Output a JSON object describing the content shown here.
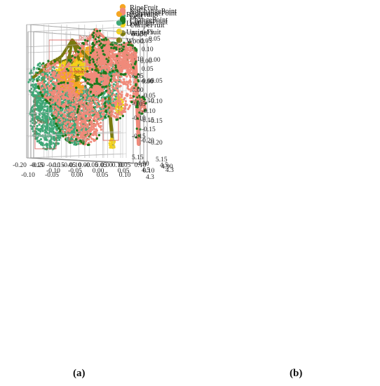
{
  "figure": {
    "captions": [
      "(a)",
      "(b)"
    ]
  },
  "colors": {
    "RipeFruit": "#f5a623",
    "Leaf": "#3fa877",
    "UnripeFruit": "#f2d21a",
    "Wood": "#7a7a10",
    "NoChangePoint": "#f08a7a",
    "ChangePoint": "#1e7a1e",
    "box": "#d9534f"
  },
  "chart_data": [
    {
      "panel": "top-left",
      "type": "scatter",
      "series_names": [
        "RipeFruit",
        "Leaf",
        "UnripeFruit",
        "Wood"
      ],
      "legend_position": "top-center",
      "x_ticks": [
        "-0.10",
        "-0.05",
        "0.00",
        "0.05",
        "0.10"
      ],
      "y_ticks": [
        "0.05",
        "0.00",
        "-0.05",
        "-0.10",
        "-0.15",
        "-0.20"
      ],
      "z_ticks": [
        "4.5",
        "4.3"
      ],
      "xlim": [
        -0.13,
        0.12
      ],
      "ylim": [
        -0.22,
        0.06
      ],
      "grid": true,
      "boxes": [
        "box5",
        "box3",
        "box1"
      ]
    },
    {
      "panel": "top-right",
      "type": "scatter",
      "series_names": [
        "NoChangePoint",
        "ChangePoint"
      ],
      "legend_position": "top-center",
      "x_ticks": [
        "-0.10",
        "-0.05",
        "0.00",
        "0.05",
        "0.10"
      ],
      "y_ticks": [
        "0.05",
        "0.00",
        "-0.05",
        "-0.10",
        "-0.15",
        "-0.20"
      ],
      "z_ticks": [
        "4.5",
        "4.3"
      ],
      "xlim": [
        -0.13,
        0.12
      ],
      "ylim": [
        -0.22,
        0.06
      ],
      "grid": true
    },
    {
      "panel": "bottom-left",
      "type": "scatter",
      "series_names": [
        "RipeFruit",
        "Leaf",
        "UnripeFruit",
        "Wood"
      ],
      "legend_position": "top-center",
      "x_ticks": [
        "-0.20",
        "-0.15",
        "-0.10",
        "-0.05",
        "0.00",
        "0.05",
        "0.10"
      ],
      "y_ticks": [
        "0.15",
        "0.10",
        "0.05",
        "0.00",
        "-0.05",
        "-0.10",
        "-0.15"
      ],
      "z_ticks": [
        "5.15",
        "4.90"
      ],
      "xlim": [
        -0.22,
        0.12
      ],
      "ylim": [
        -0.18,
        0.17
      ],
      "grid": true,
      "boxes": [
        "box4",
        "box6",
        "box2"
      ]
    },
    {
      "panel": "bottom-right",
      "type": "scatter",
      "series_names": [
        "NoChangePoint",
        "ChangePoint"
      ],
      "legend_position": "top-center",
      "x_ticks": [
        "-0.20",
        "-0.15",
        "-0.10",
        "-0.05",
        "0.00",
        "0.05",
        "0.10"
      ],
      "y_ticks": [
        "0.15",
        "0.10",
        "0.05",
        "0.00",
        "-0.05",
        "-0.10",
        "-0.15"
      ],
      "z_ticks": [
        "5.15",
        "4.90"
      ],
      "xlim": [
        -0.22,
        0.12
      ],
      "ylim": [
        -0.18,
        0.17
      ],
      "grid": true
    }
  ]
}
